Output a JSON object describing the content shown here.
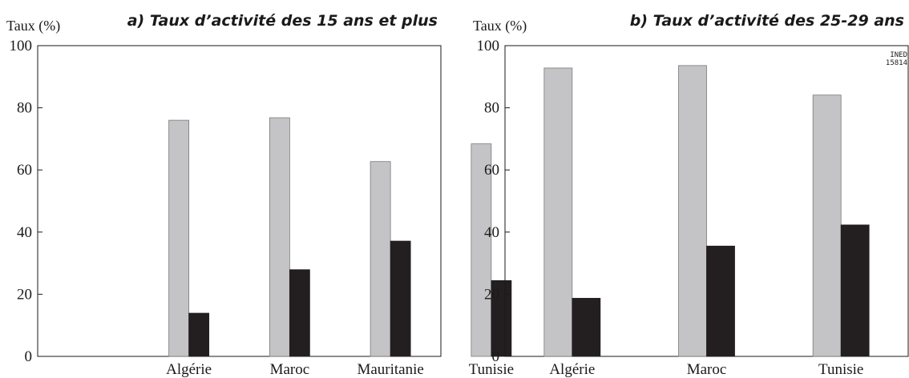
{
  "chart_data": [
    {
      "type": "bar",
      "title": "a) Taux d’activité des 15 ans et plus",
      "ylabel": "Taux (%)",
      "xlabel": "",
      "ylim": [
        0,
        100
      ],
      "yticks": [
        0,
        20,
        40,
        60,
        80,
        100
      ],
      "grid": false,
      "categories": [
        "Algérie",
        "Maroc",
        "Mauritanie",
        "Tunisie"
      ],
      "series": [
        {
          "color": "#c4c4c6",
          "values": [
            76,
            76.8,
            62.7,
            68.4
          ]
        },
        {
          "color": "#231f20",
          "values": [
            13.9,
            27.9,
            37.1,
            24.4
          ]
        }
      ],
      "notes": []
    },
    {
      "type": "bar",
      "title": "b) Taux d’activité des 25-29 ans",
      "ylabel": "Taux (%)",
      "xlabel": "",
      "ylim": [
        0,
        100
      ],
      "yticks": [
        0,
        20,
        40,
        60,
        80,
        100
      ],
      "grid": false,
      "categories": [
        "Algérie",
        "Maroc",
        "Tunisie"
      ],
      "series": [
        {
          "color": "#c4c4c6",
          "values": [
            92.8,
            93.6,
            84.1
          ]
        },
        {
          "color": "#231f20",
          "values": [
            18.7,
            35.5,
            42.3
          ]
        }
      ],
      "notes": [
        "INED",
        "15814"
      ]
    }
  ]
}
